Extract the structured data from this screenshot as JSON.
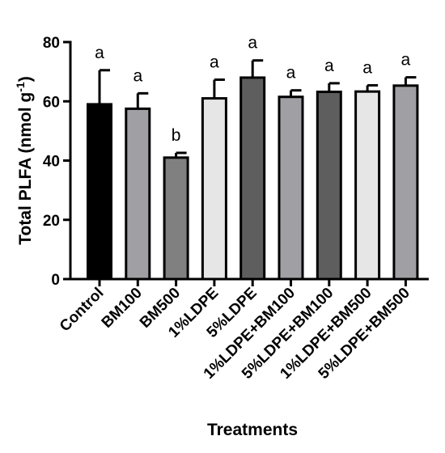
{
  "chart_data": {
    "type": "bar",
    "xlabel": "Treatments",
    "ylabel": "Total PLFA (nmol g",
    "ylabel_sup": "-1",
    "ylabel_close": ")",
    "ylim": [
      0,
      80
    ],
    "yticks": [
      "0",
      "20",
      "40",
      "60",
      "80"
    ],
    "categories": [
      "Control",
      "BM100",
      "BM500",
      "1%LDPE",
      "5%LDPE",
      "1%LDPE+BM100",
      "5%LDPE+BM100",
      "1%LDPE+BM500",
      "5%LDPE+BM500"
    ],
    "values": [
      59,
      57.5,
      41,
      61,
      68,
      61.5,
      63.2,
      63.3,
      65.3
    ],
    "errors": [
      11.5,
      5.2,
      1.6,
      6.3,
      5.8,
      2.2,
      2.9,
      2.1,
      2.8
    ],
    "letters": [
      "a",
      "a",
      "b",
      "a",
      "a",
      "a",
      "a",
      "a",
      "a"
    ],
    "colors": [
      "#000000",
      "#a0a0a4",
      "#808080",
      "#e6e6e6",
      "#5e5e5e",
      "#a0a0a4",
      "#5e5e5e",
      "#e6e6e6",
      "#a0a0a4"
    ],
    "grid": false,
    "legend": "none"
  }
}
